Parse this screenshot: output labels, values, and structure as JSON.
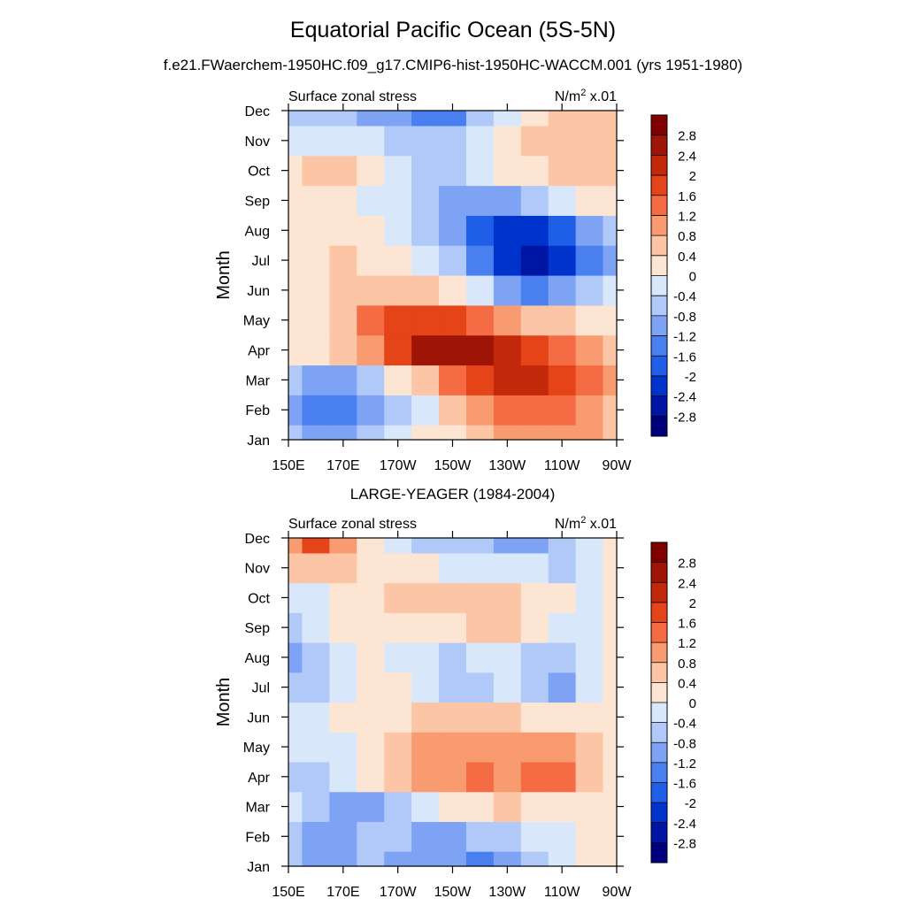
{
  "figure": {
    "title": "Equatorial Pacific Ocean (5S-5N)",
    "subtitle": "f.e21.FWaerchem-1950HC.f09_g17.CMIP6-hist-1950HC-WACCM.001 (yrs 1951-1980)"
  },
  "chart_data": [
    {
      "type": "heatmap",
      "title": "",
      "left_label": "Surface zonal stress",
      "right_label_base": "N/m",
      "right_label_sup": "2",
      "right_label_tail": " x.01",
      "xlabel": "",
      "ylabel": "Month",
      "x_ticks": [
        "150E",
        "170E",
        "170W",
        "150W",
        "130W",
        "110W",
        "90W"
      ],
      "y_ticks": [
        "Jan",
        "Feb",
        "Mar",
        "Apr",
        "May",
        "Jun",
        "Jul",
        "Aug",
        "Sep",
        "Oct",
        "Nov",
        "Dec"
      ],
      "longitudes_east": [
        150,
        160,
        170,
        180,
        190,
        200,
        210,
        220,
        230,
        240,
        250,
        260,
        270
      ],
      "values": [
        [
          -0.8,
          -0.9,
          -0.9,
          -0.6,
          -0.3,
          0.0,
          0.3,
          0.6,
          0.9,
          1.1,
          1.0,
          0.8,
          0.6
        ],
        [
          -1.0,
          -1.3,
          -1.5,
          -1.0,
          -0.6,
          -0.2,
          0.4,
          0.9,
          1.2,
          1.5,
          1.4,
          1.0,
          0.7
        ],
        [
          -0.7,
          -0.9,
          -0.9,
          -0.5,
          0.0,
          0.5,
          1.2,
          1.8,
          2.2,
          2.1,
          1.8,
          1.2,
          0.8
        ],
        [
          0.0,
          0.1,
          0.4,
          1.0,
          1.6,
          2.4,
          2.7,
          2.4,
          2.0,
          1.6,
          1.2,
          0.8,
          0.5
        ],
        [
          0.2,
          0.3,
          0.7,
          1.2,
          1.6,
          1.8,
          1.6,
          1.2,
          0.9,
          0.6,
          0.4,
          0.2,
          0.2
        ],
        [
          0.3,
          0.3,
          0.5,
          0.7,
          0.7,
          0.5,
          0.2,
          -0.3,
          -0.9,
          -1.3,
          -1.2,
          -0.8,
          -0.4
        ],
        [
          0.3,
          0.3,
          0.4,
          0.3,
          0.2,
          -0.2,
          -0.8,
          -1.5,
          -2.2,
          -2.8,
          -2.4,
          -1.6,
          -0.9
        ],
        [
          0.3,
          0.3,
          0.3,
          0.1,
          -0.2,
          -0.6,
          -1.1,
          -1.7,
          -2.2,
          -2.4,
          -2.0,
          -1.2,
          -0.6
        ],
        [
          0.3,
          0.3,
          0.2,
          -0.1,
          -0.4,
          -0.7,
          -0.9,
          -1.0,
          -0.9,
          -0.6,
          -0.3,
          0.0,
          0.2
        ],
        [
          0.3,
          0.4,
          0.5,
          0.1,
          -0.2,
          -0.5,
          -0.6,
          -0.3,
          0.1,
          0.3,
          0.4,
          0.5,
          0.6
        ],
        [
          -0.1,
          -0.2,
          -0.3,
          -0.3,
          -0.5,
          -0.8,
          -0.7,
          -0.2,
          0.2,
          0.4,
          0.5,
          0.6,
          0.6
        ],
        [
          -0.5,
          -0.6,
          -0.8,
          -1.0,
          -1.2,
          -1.3,
          -1.3,
          -0.6,
          -0.2,
          0.2,
          0.4,
          0.5,
          0.5
        ]
      ],
      "levels": [
        -2.8,
        -2.4,
        -2.0,
        -1.6,
        -1.2,
        -0.8,
        -0.4,
        0,
        0.4,
        0.8,
        1.2,
        1.6,
        2.0,
        2.4,
        2.8
      ],
      "colorbar_labels": [
        "2.8",
        "2.4",
        "2",
        "1.6",
        "1.2",
        "0.8",
        "0.4",
        "0",
        "-0.4",
        "-0.8",
        "-1.2",
        "-1.6",
        "-2",
        "-2.4",
        "-2.8"
      ],
      "colors": [
        "#00007f",
        "#0015a3",
        "#0033cc",
        "#1f5fe8",
        "#4a7ff0",
        "#7ea3f5",
        "#b1c9f8",
        "#d9e7fb",
        "#fde5d4",
        "#fcc5a6",
        "#f89b70",
        "#f46b44",
        "#e54318",
        "#c2280a",
        "#9e1406",
        "#800000"
      ]
    },
    {
      "type": "heatmap",
      "title": "LARGE-YEAGER (1984-2004)",
      "left_label": "Surface zonal stress",
      "right_label_base": "N/m",
      "right_label_sup": "2",
      "right_label_tail": " x.01",
      "xlabel": "",
      "ylabel": "Month",
      "x_ticks": [
        "150E",
        "170E",
        "170W",
        "150W",
        "130W",
        "110W",
        "90W"
      ],
      "y_ticks": [
        "Jan",
        "Feb",
        "Mar",
        "Apr",
        "May",
        "Jun",
        "Jul",
        "Aug",
        "Sep",
        "Oct",
        "Nov",
        "Dec"
      ],
      "longitudes_east": [
        150,
        160,
        170,
        180,
        190,
        200,
        210,
        220,
        230,
        240,
        250,
        260,
        270
      ],
      "values": [
        [
          -0.6,
          -0.9,
          -0.9,
          -0.8,
          -0.9,
          -1.2,
          -1.0,
          -1.3,
          -1.0,
          -0.6,
          -0.3,
          0.1,
          0.2
        ],
        [
          -0.6,
          -0.9,
          -1.1,
          -0.8,
          -0.8,
          -1.0,
          -0.9,
          -0.8,
          -0.6,
          -0.4,
          -0.2,
          0.1,
          0.2
        ],
        [
          -0.3,
          -0.7,
          -1.1,
          -1.1,
          -0.8,
          -0.4,
          0.0,
          0.3,
          0.4,
          0.3,
          0.2,
          0.1,
          0.1
        ],
        [
          -0.5,
          -0.6,
          -0.3,
          0.0,
          0.4,
          0.9,
          1.1,
          1.3,
          1.1,
          1.4,
          1.3,
          0.6,
          0.1
        ],
        [
          -0.4,
          -0.3,
          -0.1,
          0.2,
          0.6,
          0.9,
          1.0,
          1.0,
          0.9,
          1.1,
          1.0,
          0.5,
          0.2
        ],
        [
          -0.3,
          -0.3,
          0.0,
          0.1,
          0.3,
          0.5,
          0.6,
          0.5,
          0.4,
          0.3,
          0.2,
          0.1,
          0.2
        ],
        [
          -0.6,
          -0.5,
          -0.3,
          0.1,
          0.1,
          -0.4,
          -0.6,
          -0.5,
          -0.3,
          -0.5,
          -0.9,
          -0.4,
          0.0
        ],
        [
          -0.9,
          -0.6,
          -0.2,
          0.1,
          -0.1,
          -0.4,
          -0.5,
          -0.4,
          -0.3,
          -0.5,
          -0.7,
          -0.3,
          0.1
        ],
        [
          -0.5,
          -0.4,
          0.1,
          0.3,
          0.3,
          0.2,
          0.2,
          0.5,
          0.7,
          0.3,
          -0.2,
          -0.1,
          0.2
        ],
        [
          -0.3,
          -0.1,
          0.2,
          0.3,
          0.5,
          0.5,
          0.5,
          0.6,
          0.5,
          0.3,
          0.0,
          -0.2,
          0.2
        ],
        [
          0.6,
          0.7,
          0.6,
          0.3,
          0.1,
          0.0,
          -0.2,
          -0.3,
          -0.4,
          -0.3,
          -0.5,
          -0.3,
          0.3
        ],
        [
          1.0,
          1.6,
          0.8,
          0.3,
          -0.1,
          -0.6,
          -0.5,
          -0.7,
          -1.0,
          -0.9,
          -0.5,
          -0.2,
          0.0
        ]
      ],
      "levels": [
        -2.8,
        -2.4,
        -2.0,
        -1.6,
        -1.2,
        -0.8,
        -0.4,
        0,
        0.4,
        0.8,
        1.2,
        1.6,
        2.0,
        2.4,
        2.8
      ],
      "colorbar_labels": [
        "2.8",
        "2.4",
        "2",
        "1.6",
        "1.2",
        "0.8",
        "0.4",
        "0",
        "-0.4",
        "-0.8",
        "-1.2",
        "-1.6",
        "-2",
        "-2.4",
        "-2.8"
      ],
      "colors": [
        "#00007f",
        "#0015a3",
        "#0033cc",
        "#1f5fe8",
        "#4a7ff0",
        "#7ea3f5",
        "#b1c9f8",
        "#d9e7fb",
        "#fde5d4",
        "#fcc5a6",
        "#f89b70",
        "#f46b44",
        "#e54318",
        "#c2280a",
        "#9e1406",
        "#800000"
      ]
    }
  ]
}
